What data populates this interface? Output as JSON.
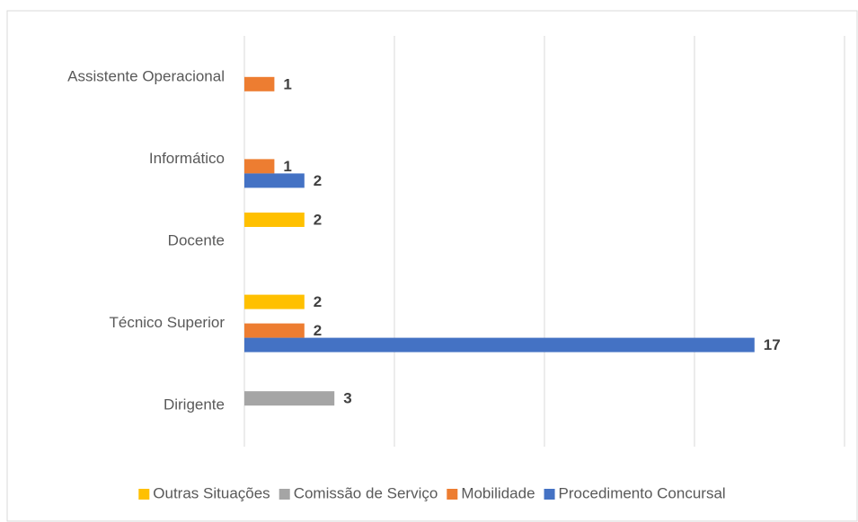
{
  "chart_data": {
    "type": "bar",
    "orientation": "horizontal",
    "categories": [
      "Dirigente",
      "Técnico Superior",
      "Docente",
      "Informático",
      "Assistente Operacional"
    ],
    "series": [
      {
        "name": "Outras Situações",
        "color": "#ffc000",
        "values": [
          null,
          2,
          2,
          null,
          null
        ]
      },
      {
        "name": "Comissão de Serviço",
        "color": "#a5a5a5",
        "values": [
          3,
          null,
          null,
          null,
          null
        ]
      },
      {
        "name": "Mobilidade",
        "color": "#ed7d31",
        "values": [
          null,
          2,
          null,
          1,
          1
        ]
      },
      {
        "name": "Procedimento Concursal",
        "color": "#4472c4",
        "values": [
          null,
          17,
          null,
          2,
          null
        ]
      }
    ],
    "xlim": [
      0,
      20
    ],
    "xticks": [
      0,
      5,
      10,
      15,
      20
    ],
    "grid": true,
    "legend": "bottom"
  }
}
